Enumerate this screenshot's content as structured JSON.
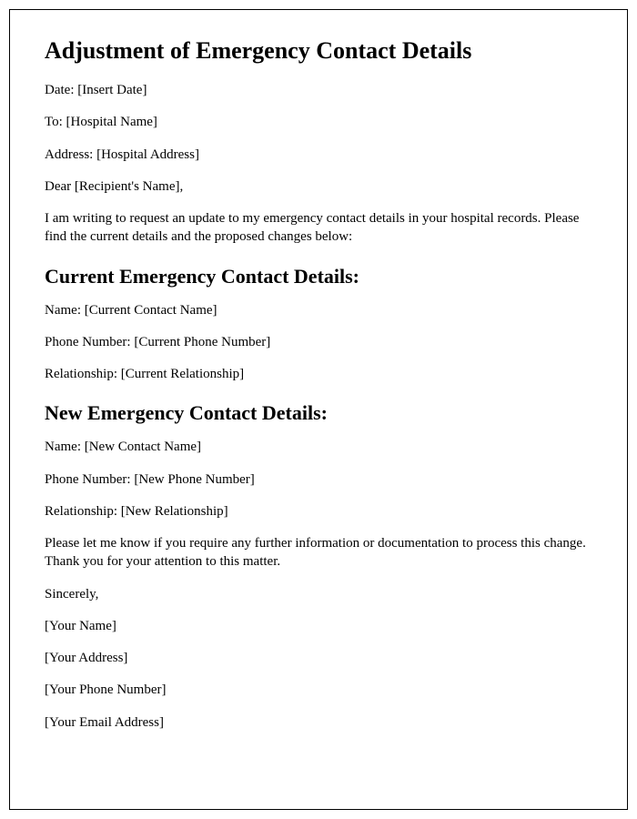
{
  "title": "Adjustment of Emergency Contact Details",
  "date_line": "Date: [Insert Date]",
  "to_line": "To: [Hospital Name]",
  "address_line": "Address: [Hospital Address]",
  "salutation": "Dear [Recipient's Name],",
  "intro_paragraph": "I am writing to request an update to my emergency contact details in your hospital records. Please find the current details and the proposed changes below:",
  "current_section": {
    "heading": "Current Emergency Contact Details:",
    "name": "Name: [Current Contact Name]",
    "phone": "Phone Number: [Current Phone Number]",
    "relationship": "Relationship: [Current Relationship]"
  },
  "new_section": {
    "heading": "New Emergency Contact Details:",
    "name": "Name: [New Contact Name]",
    "phone": "Phone Number: [New Phone Number]",
    "relationship": "Relationship: [New Relationship]"
  },
  "closing_paragraph": "Please let me know if you require any further information or documentation to process this change. Thank you for your attention to this matter.",
  "signoff": "Sincerely,",
  "sender": {
    "name": "[Your Name]",
    "address": "[Your Address]",
    "phone": "[Your Phone Number]",
    "email": "[Your Email Address]"
  },
  "styles": {
    "border_color": "#000000",
    "background_color": "#ffffff",
    "h1_fontsize": 26,
    "h2_fontsize": 22,
    "p_fontsize": 15,
    "font_family": "Times New Roman"
  }
}
